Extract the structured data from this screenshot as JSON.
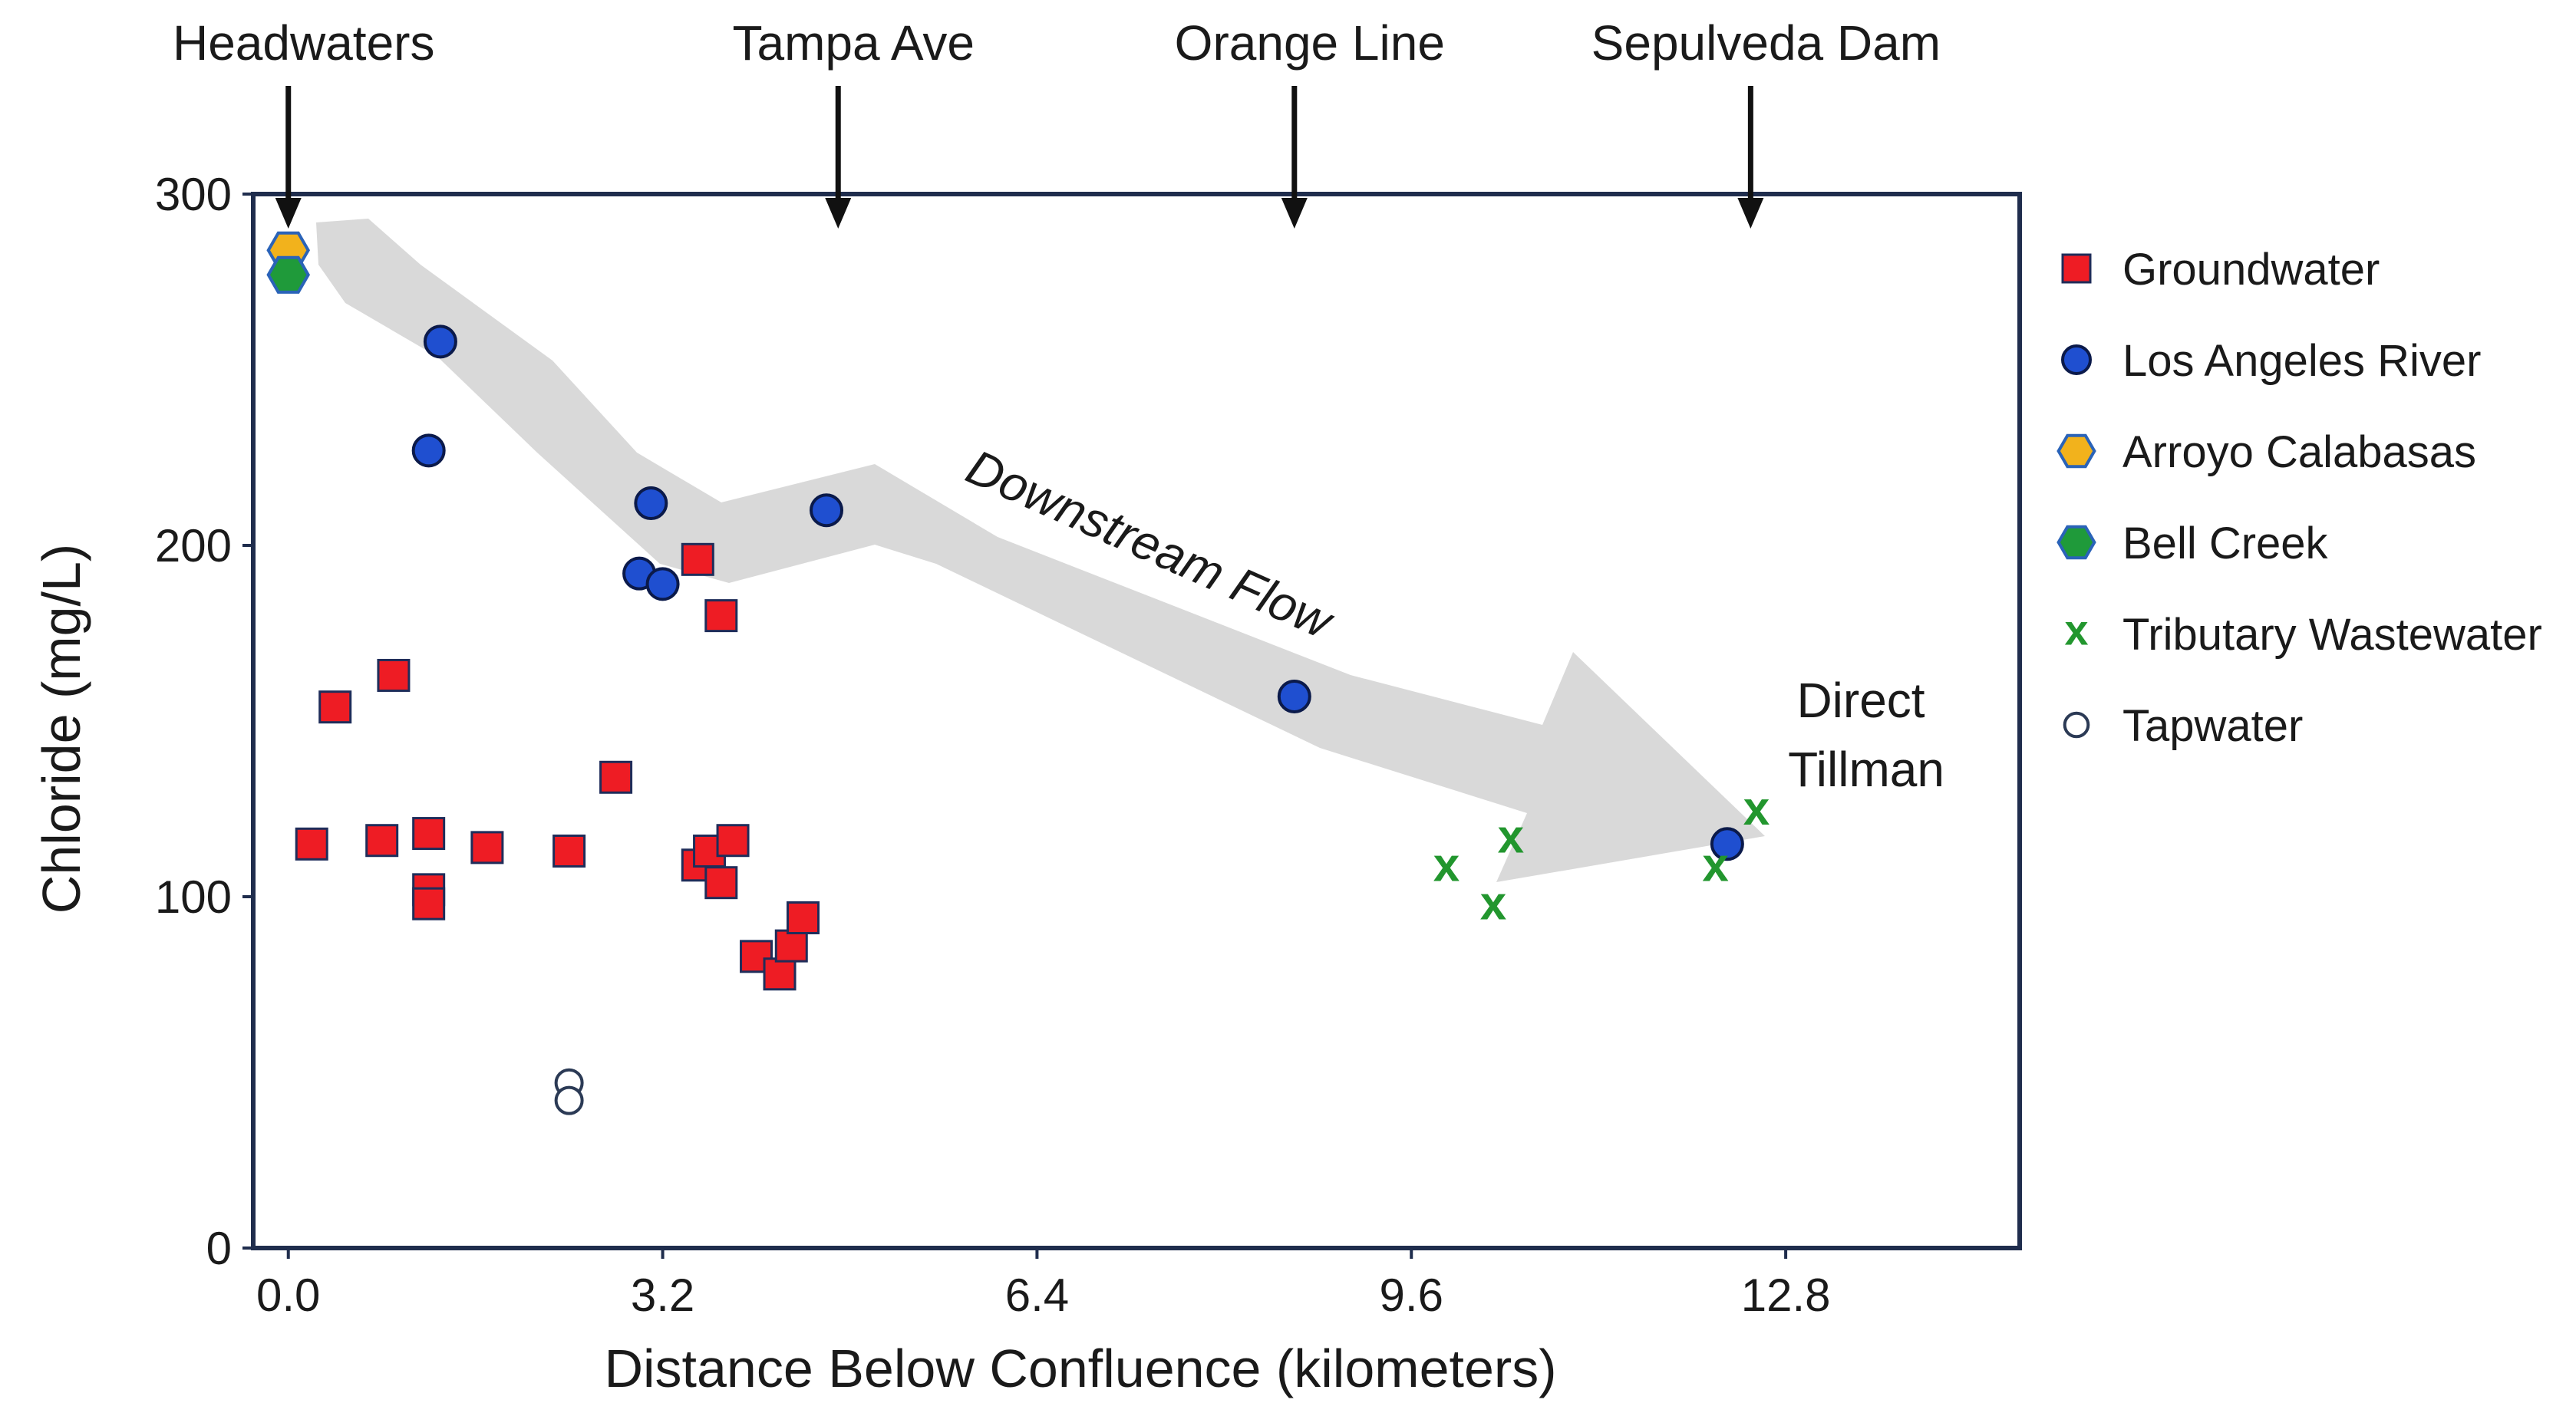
{
  "chart_data": {
    "type": "scatter",
    "title": "",
    "xlabel": "Distance Below Confluence (kilometers)",
    "ylabel": "Chloride (mg/L)",
    "xlim": [
      -0.3,
      14.8
    ],
    "ylim": [
      0,
      300
    ],
    "x_ticks": [
      0.0,
      3.2,
      6.4,
      9.6,
      12.8
    ],
    "x_tick_labels": [
      "0.0",
      "3.2",
      "6.4",
      "9.6",
      "12.8"
    ],
    "y_ticks": [
      0,
      100,
      200,
      300
    ],
    "y_tick_labels": [
      "0",
      "100",
      "200",
      "300"
    ],
    "grid": false,
    "legend_position": "right",
    "series": [
      {
        "name": "Groundwater",
        "marker": "square",
        "color": "#ee1c24",
        "edge": "#1f2d5a",
        "points": [
          [
            0.2,
            115
          ],
          [
            0.4,
            154
          ],
          [
            0.8,
            116
          ],
          [
            0.9,
            163
          ],
          [
            1.2,
            118
          ],
          [
            1.2,
            102
          ],
          [
            1.2,
            98
          ],
          [
            1.7,
            114
          ],
          [
            2.4,
            113
          ],
          [
            2.8,
            134
          ],
          [
            3.5,
            196
          ],
          [
            3.5,
            109
          ],
          [
            3.6,
            113
          ],
          [
            3.7,
            104
          ],
          [
            3.7,
            180
          ],
          [
            3.8,
            116
          ],
          [
            4.0,
            83
          ],
          [
            4.2,
            78
          ],
          [
            4.3,
            86
          ],
          [
            4.4,
            94
          ]
        ]
      },
      {
        "name": "Los Angeles River",
        "marker": "circle",
        "color": "#1f4fd0",
        "edge": "#0b1a4a",
        "points": [
          [
            1.3,
            258
          ],
          [
            1.2,
            227
          ],
          [
            3.1,
            212
          ],
          [
            3.0,
            192
          ],
          [
            3.2,
            189
          ],
          [
            4.6,
            210
          ],
          [
            8.6,
            157
          ],
          [
            12.3,
            115
          ]
        ]
      },
      {
        "name": "Arroyo Calabasas",
        "marker": "hexagon",
        "color": "#f2b21c",
        "edge": "#2a63b8",
        "points": [
          [
            0.0,
            284
          ]
        ]
      },
      {
        "name": "Bell Creek",
        "marker": "hexagon",
        "color": "#1f9a3a",
        "edge": "#2a63b8",
        "points": [
          [
            0.0,
            277
          ]
        ]
      },
      {
        "name": "Tributary Wastewater",
        "marker": "x",
        "color": "#22962e",
        "edge": "#22962e",
        "points": [
          [
            9.9,
            108
          ],
          [
            10.3,
            97
          ],
          [
            10.45,
            116
          ],
          [
            12.2,
            108
          ],
          [
            12.55,
            124
          ]
        ]
      },
      {
        "name": "Tapwater",
        "marker": "open-circle",
        "color": "#ffffff",
        "edge": "#2b3a55",
        "points": [
          [
            2.4,
            47
          ],
          [
            2.4,
            42
          ]
        ]
      }
    ],
    "annotations": {
      "locations": [
        {
          "label": "Headwaters",
          "x": 0.0
        },
        {
          "label": "Tampa Ave",
          "x": 4.7
        },
        {
          "label": "Orange Line",
          "x": 8.6
        },
        {
          "label": "Sepulveda Dam",
          "x": 12.5
        }
      ],
      "flow_text": "Downstream Flow",
      "point_note": [
        "Direct",
        "Tillman"
      ]
    }
  }
}
